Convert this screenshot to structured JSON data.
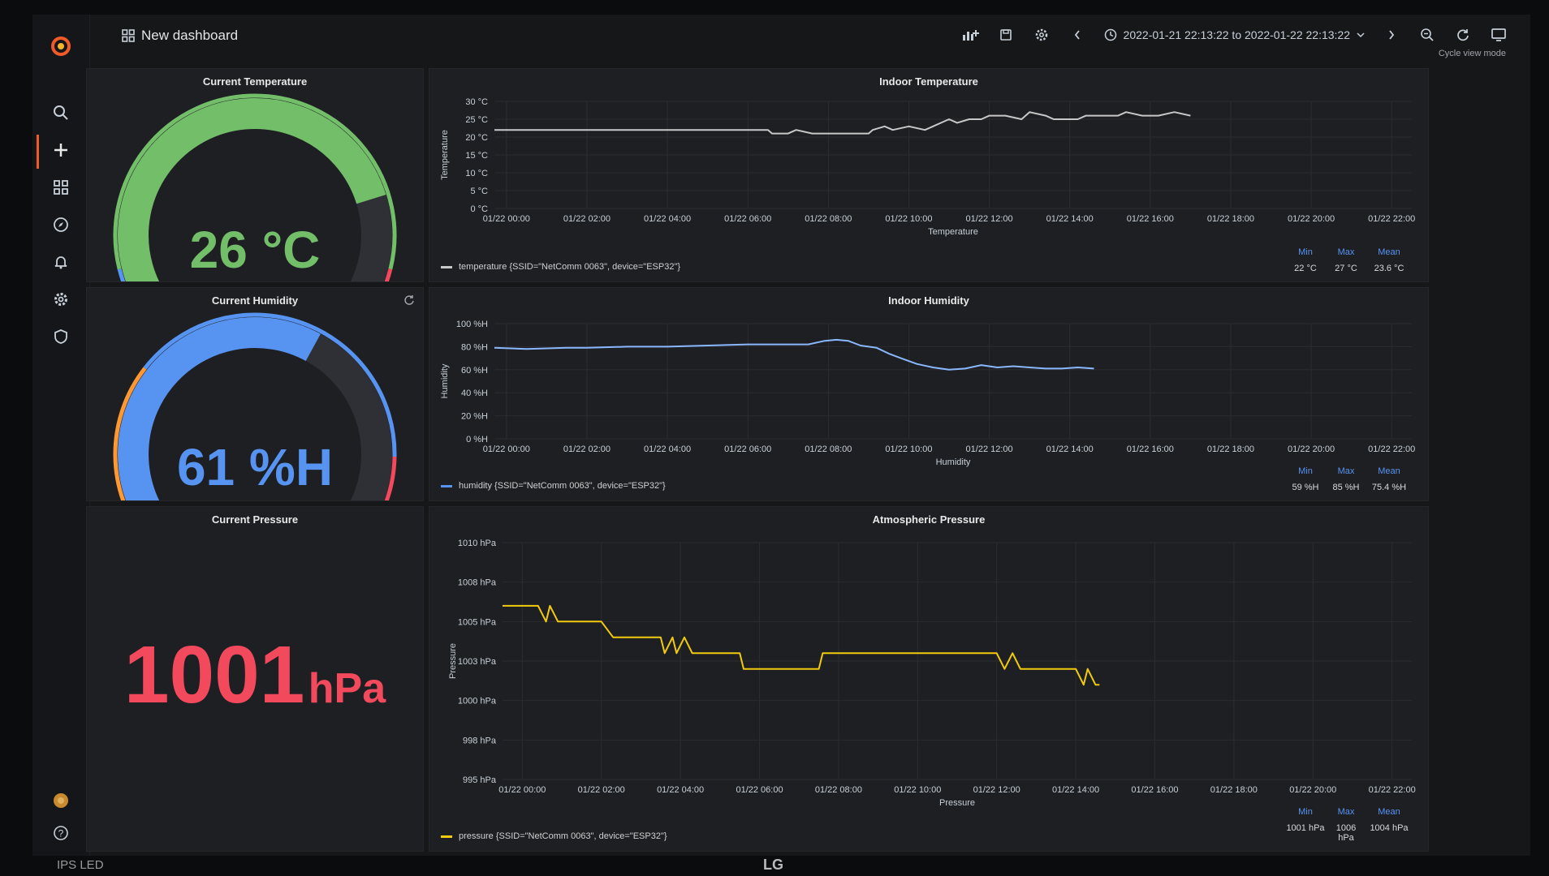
{
  "app": {
    "dashboard_title": "New dashboard",
    "time_range": "2022-01-21 22:13:22 to 2022-01-22 22:13:22",
    "cycle_view_label": "Cycle view mode"
  },
  "bezel": {
    "brand": "LG",
    "panel_type": "IPS LED"
  },
  "gauges": {
    "temperature": {
      "title": "Current Temperature",
      "value": "26",
      "unit": "°C",
      "fraction": 0.78,
      "color": "#73bf69"
    },
    "humidity": {
      "title": "Current Humidity",
      "value": "61",
      "unit": "%H",
      "fraction": 0.61,
      "color": "#5794f2"
    }
  },
  "pressure_stat": {
    "title": "Current Pressure",
    "value": "1001",
    "unit": "hPa",
    "color": "#f2495c"
  },
  "charts": {
    "temperature": {
      "title": "Indoor Temperature",
      "legend": "temperature {SSID=\"NetComm 0063\", device=\"ESP32\"}",
      "stats": {
        "min_label": "Min",
        "max_label": "Max",
        "mean_label": "Mean",
        "min": "22 °C",
        "max": "27 °C",
        "mean": "23.6 °C"
      }
    },
    "humidity": {
      "title": "Indoor Humidity",
      "legend": "humidity {SSID=\"NetComm 0063\", device=\"ESP32\"}",
      "stats": {
        "min_label": "Min",
        "max_label": "Max",
        "mean_label": "Mean",
        "min": "59 %H",
        "max": "85 %H",
        "mean": "75.4 %H"
      }
    },
    "pressure": {
      "title": "Atmospheric Pressure",
      "legend": "pressure {SSID=\"NetComm 0063\", device=\"ESP32\"}",
      "stats": {
        "min_label": "Min",
        "max_label": "Max",
        "mean_label": "Mean",
        "min": "1001 hPa",
        "max": "1006 hPa",
        "mean": "1004 hPa"
      }
    }
  },
  "chart_data": [
    {
      "type": "line",
      "title": "Indoor Temperature",
      "xlabel": "Temperature",
      "ylabel": "Temperature",
      "color": "#c8c8c8",
      "x_ticks": [
        "01/22 00:00",
        "01/22 02:00",
        "01/22 04:00",
        "01/22 06:00",
        "01/22 08:00",
        "01/22 10:00",
        "01/22 12:00",
        "01/22 14:00",
        "01/22 16:00",
        "01/22 18:00",
        "01/22 20:00",
        "01/22 22:00"
      ],
      "y_ticks": [
        "0 °C",
        "5 °C",
        "10 °C",
        "15 °C",
        "20 °C",
        "25 °C",
        "30 °C"
      ],
      "ylim": [
        0,
        30
      ],
      "xlim": [
        -0.3,
        22.5
      ],
      "x": [
        -0.3,
        6.5,
        6.6,
        7.0,
        7.2,
        7.6,
        9.0,
        9.1,
        9.4,
        9.6,
        10.0,
        10.4,
        10.6,
        11.0,
        11.2,
        11.5,
        11.8,
        12.0,
        12.4,
        12.8,
        13.0,
        13.4,
        13.6,
        14.2,
        14.4,
        14.6,
        15.2,
        15.4,
        15.8,
        16.2,
        16.6,
        17.0
      ],
      "y": [
        22,
        22,
        21,
        21,
        22,
        21,
        21,
        22,
        23,
        22,
        23,
        22,
        23,
        25,
        24,
        25,
        25,
        26,
        26,
        25,
        27,
        26,
        25,
        25,
        26,
        26,
        26,
        27,
        26,
        26,
        27,
        26
      ]
    },
    {
      "type": "line",
      "title": "Indoor Humidity",
      "xlabel": "Humidity",
      "ylabel": "Humidity",
      "color": "#8ab8ff",
      "x_ticks": [
        "01/22 00:00",
        "01/22 02:00",
        "01/22 04:00",
        "01/22 06:00",
        "01/22 08:00",
        "01/22 10:00",
        "01/22 12:00",
        "01/22 14:00",
        "01/22 16:00",
        "01/22 18:00",
        "01/22 20:00",
        "01/22 22:00"
      ],
      "y_ticks": [
        "0 %H",
        "20 %H",
        "40 %H",
        "60 %H",
        "80 %H",
        "100 %H"
      ],
      "ylim": [
        0,
        100
      ],
      "xlim": [
        -0.3,
        22.5
      ],
      "x": [
        -0.3,
        0.5,
        1.5,
        2.0,
        3.0,
        4.0,
        5.0,
        6.0,
        7.0,
        7.5,
        7.9,
        8.2,
        8.5,
        8.8,
        9.2,
        9.5,
        9.8,
        10.2,
        10.6,
        11.0,
        11.4,
        11.8,
        12.2,
        12.6,
        13.0,
        13.4,
        13.8,
        14.2,
        14.6
      ],
      "y": [
        79,
        78,
        79,
        79,
        80,
        80,
        81,
        82,
        82,
        82,
        85,
        86,
        85,
        81,
        79,
        74,
        70,
        65,
        62,
        60,
        61,
        64,
        62,
        63,
        62,
        61,
        61,
        62,
        61
      ]
    },
    {
      "type": "line",
      "title": "Atmospheric Pressure",
      "xlabel": "Pressure",
      "ylabel": "Pressure",
      "color": "#f2cc0c",
      "x_ticks": [
        "01/22 00:00",
        "01/22 02:00",
        "01/22 04:00",
        "01/22 06:00",
        "01/22 08:00",
        "01/22 10:00",
        "01/22 12:00",
        "01/22 14:00",
        "01/22 16:00",
        "01/22 18:00",
        "01/22 20:00",
        "01/22 22:00"
      ],
      "y_ticks": [
        "995 hPa",
        "998 hPa",
        "1000 hPa",
        "1003 hPa",
        "1005 hPa",
        "1008 hPa",
        "1010 hPa"
      ],
      "ylim": [
        995,
        1010
      ],
      "xlim": [
        -0.5,
        22.5
      ],
      "x": [
        -0.5,
        0.4,
        0.6,
        0.7,
        0.9,
        1.2,
        2.0,
        2.3,
        3.0,
        3.5,
        3.6,
        3.8,
        3.9,
        4.1,
        4.3,
        5.0,
        5.5,
        5.6,
        5.8,
        6.5,
        7.5,
        7.6,
        8.0,
        9.0,
        10.0,
        11.0,
        12.0,
        12.2,
        12.4,
        12.6,
        12.8,
        14.0,
        14.2,
        14.3,
        14.5,
        14.6
      ],
      "y": [
        1006,
        1006,
        1005,
        1006,
        1005,
        1005,
        1005,
        1004,
        1004,
        1004,
        1003,
        1004,
        1003,
        1004,
        1003,
        1003,
        1003,
        1002,
        1002,
        1002,
        1002,
        1003,
        1003,
        1003,
        1003,
        1003,
        1003,
        1002,
        1003,
        1002,
        1002,
        1002,
        1001,
        1002,
        1001,
        1001
      ]
    }
  ]
}
